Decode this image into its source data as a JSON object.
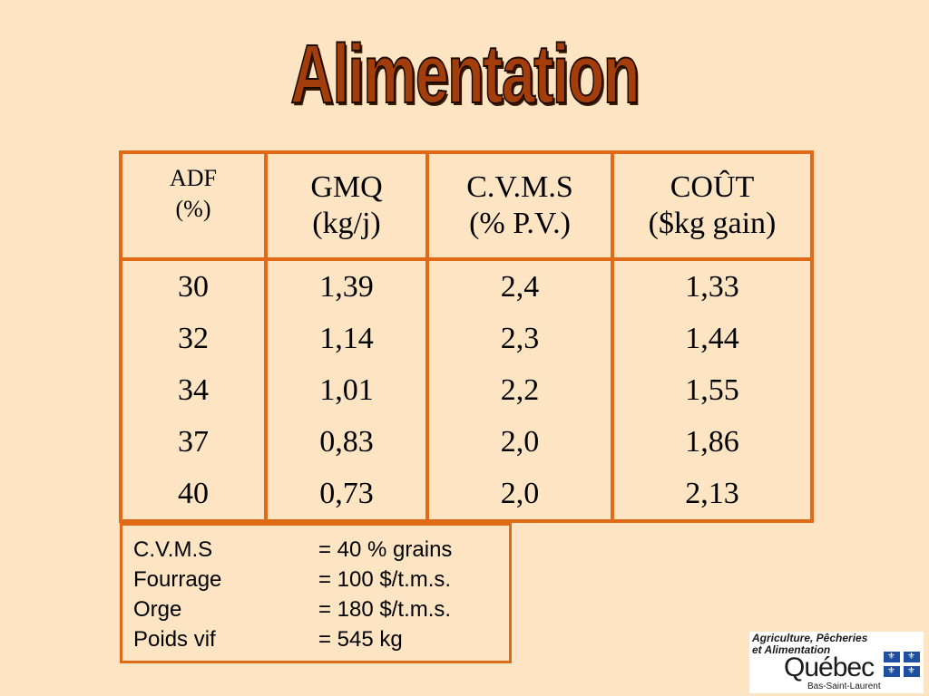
{
  "title": "Alimentation",
  "table": {
    "headers": [
      {
        "line1": "ADF",
        "line2": "(%)"
      },
      {
        "line1": "GMQ",
        "line2": "(kg/j)"
      },
      {
        "line1": "C.V.M.S",
        "line2": "(% P.V.)"
      },
      {
        "line1": "COÛT",
        "line2": "($kg gain)"
      }
    ],
    "rows": [
      [
        "30",
        "1,39",
        "2,4",
        "1,33"
      ],
      [
        "32",
        "1,14",
        "2,3",
        "1,44"
      ],
      [
        "34",
        "1,01",
        "2,2",
        "1,55"
      ],
      [
        "37",
        "0,83",
        "2,0",
        "1,86"
      ],
      [
        "40",
        "0,73",
        "2,0",
        "2,13"
      ]
    ]
  },
  "notes": [
    {
      "label": "C.V.M.S",
      "value": "= 40 % grains"
    },
    {
      "label": "Fourrage",
      "value": "= 100 $/t.m.s."
    },
    {
      "label": "Orge",
      "value": "= 180 $/t.m.s."
    },
    {
      "label": "Poids vif",
      "value": "= 545 kg"
    }
  ],
  "logo": {
    "ministry_line1": "Agriculture, Pêcheries",
    "ministry_line2": "et Alimentation",
    "name": "Québec",
    "region": "Bas-Saint-Laurent",
    "icon": "fleur-de-lis-flag-icon"
  },
  "colors": {
    "background": "#fde5c3",
    "accent_border": "#e06a17",
    "title": "#a33d0b"
  }
}
